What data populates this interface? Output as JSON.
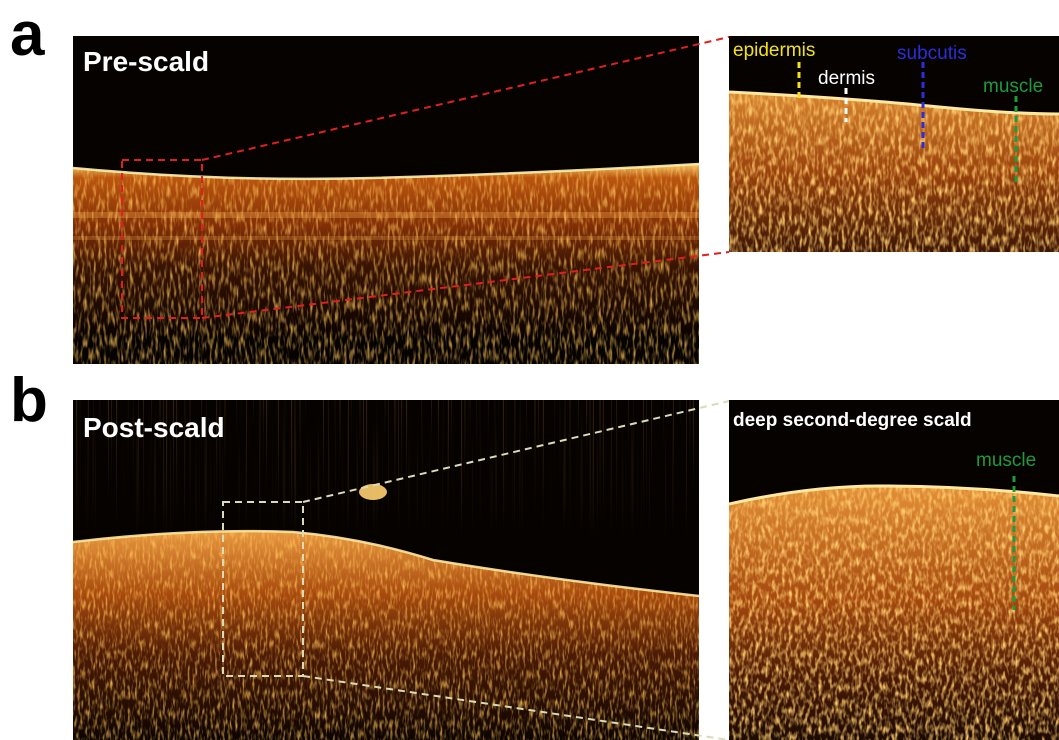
{
  "panel_a": {
    "letter": "a",
    "title": "Pre-scald",
    "labels": {
      "epidermis": "epidermis",
      "dermis": "dermis",
      "subcutis": "subcutis",
      "muscle": "muscle"
    }
  },
  "panel_b": {
    "letter": "b",
    "title": "Post-scald",
    "zoom_title": "deep second-degree scald",
    "labels": {
      "muscle": "muscle"
    }
  },
  "colors": {
    "epidermis": "#f2e21a",
    "dermis": "#ffffff",
    "subcutis": "#2d2ddc",
    "muscle": "#1f9a3c",
    "zoom_box_a": "#e02020",
    "zoom_box_b": "#d8dcb8"
  }
}
